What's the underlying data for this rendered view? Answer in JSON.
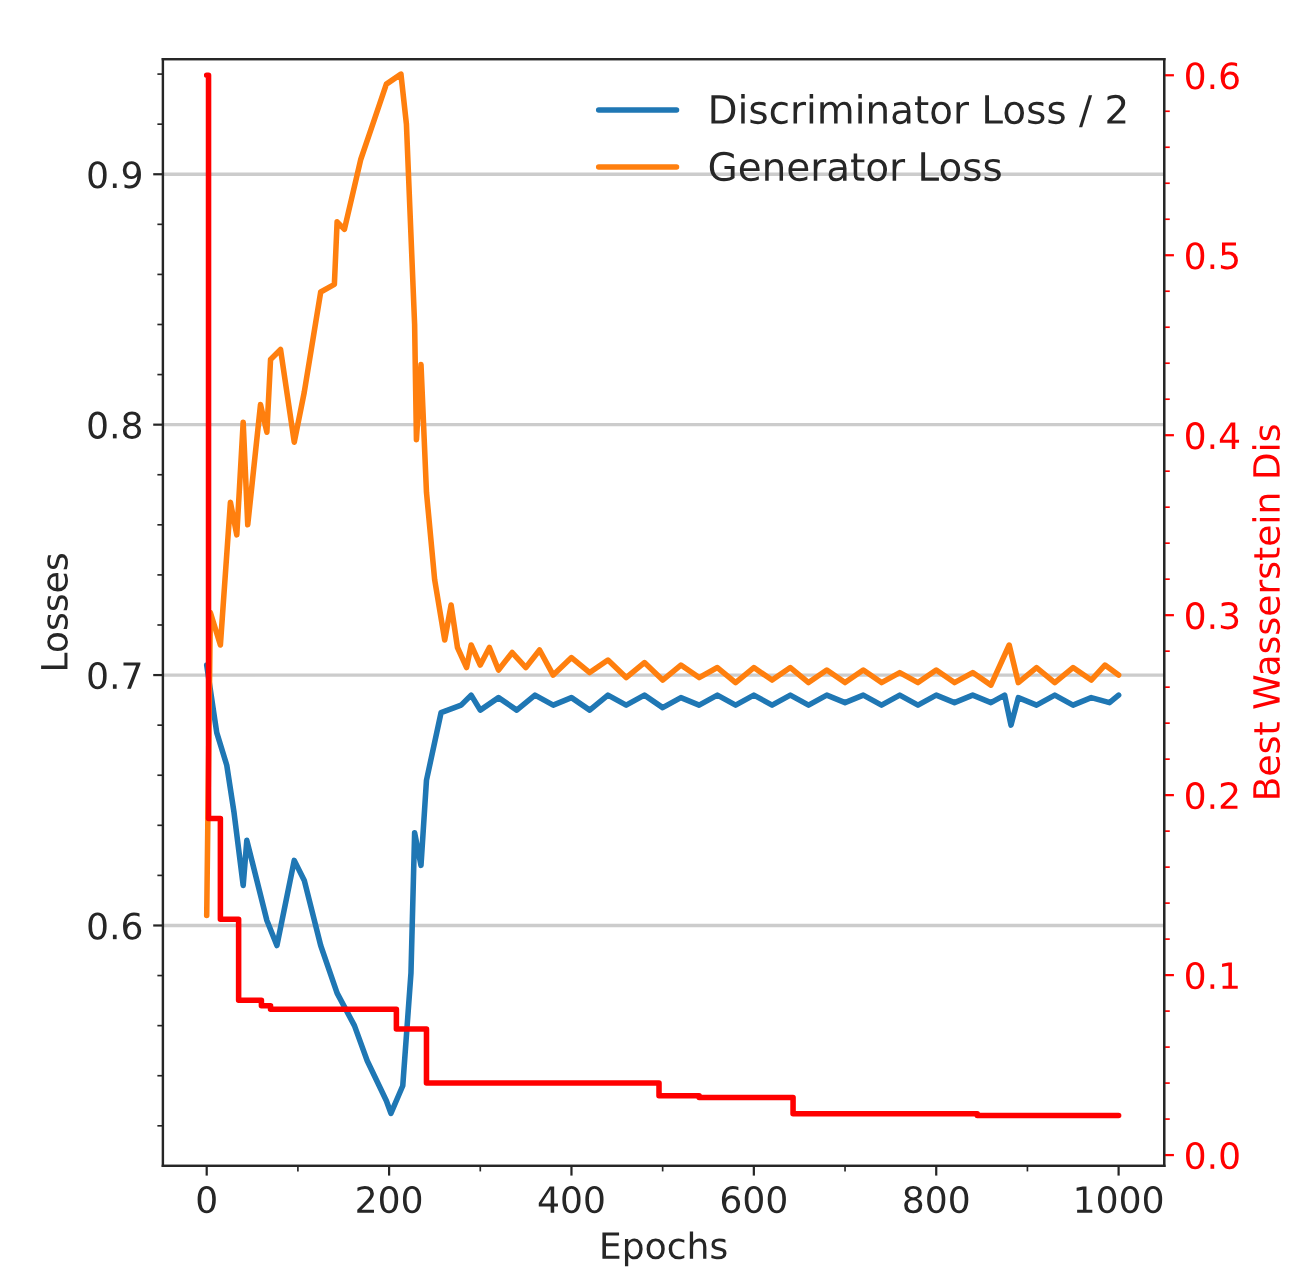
{
  "chart_data": {
    "type": "line",
    "xlabel": "Epochs",
    "ylabel": "Losses",
    "y2label": "Best Wasserstein Dis",
    "xlim": [
      -48,
      1050
    ],
    "xticks": [
      0,
      200,
      400,
      600,
      800,
      1000
    ],
    "ylim": [
      0.504,
      0.946
    ],
    "yticks": [
      0.6,
      0.7,
      0.8,
      0.9
    ],
    "y2lim": [
      -0.006,
      0.609
    ],
    "y2ticks": [
      {
        "value": 0,
        "label": "0.0"
      },
      0.1,
      0.2,
      0.3,
      0.4,
      0.5,
      0.6
    ],
    "grid": "y",
    "legend": "top right",
    "line_style": "solid",
    "marker": "none",
    "series": [
      {
        "name": "Discriminator Loss / 2",
        "color": "#1f77b4",
        "x": [
          0,
          11,
          22,
          30,
          40,
          44,
          66,
          77,
          96,
          107,
          125,
          143,
          162,
          176,
          197,
          202,
          215,
          224,
          228,
          235,
          241,
          257,
          279,
          290,
          300,
          320,
          340,
          360,
          380,
          400,
          420,
          440,
          460,
          480,
          500,
          520,
          540,
          560,
          580,
          600,
          620,
          640,
          660,
          680,
          700,
          720,
          740,
          760,
          780,
          800,
          820,
          840,
          860,
          875,
          882,
          890,
          910,
          930,
          950,
          970,
          990,
          1000
        ],
        "values": [
          0.704,
          0.677,
          0.664,
          0.645,
          0.616,
          0.634,
          0.602,
          0.592,
          0.626,
          0.618,
          0.592,
          0.573,
          0.56,
          0.546,
          0.53,
          0.525,
          0.536,
          0.581,
          0.637,
          0.624,
          0.658,
          0.685,
          0.688,
          0.692,
          0.686,
          0.691,
          0.686,
          0.692,
          0.688,
          0.691,
          0.686,
          0.692,
          0.688,
          0.692,
          0.687,
          0.691,
          0.688,
          0.692,
          0.688,
          0.692,
          0.688,
          0.692,
          0.688,
          0.692,
          0.689,
          0.692,
          0.688,
          0.692,
          0.688,
          0.692,
          0.689,
          0.692,
          0.689,
          0.692,
          0.68,
          0.691,
          0.688,
          0.692,
          0.688,
          0.691,
          0.689,
          0.692
        ]
      },
      {
        "name": "Generator Loss",
        "color": "#ff7f0e",
        "x": [
          0,
          4,
          15,
          26,
          33,
          40,
          45,
          59,
          66,
          70,
          81,
          96,
          107,
          125,
          140,
          143,
          151,
          169,
          184,
          197,
          213,
          219,
          228,
          230,
          235,
          241,
          250,
          261,
          268,
          275,
          285,
          290,
          300,
          310,
          320,
          335,
          350,
          365,
          380,
          400,
          420,
          440,
          460,
          480,
          500,
          520,
          540,
          560,
          580,
          600,
          620,
          640,
          660,
          680,
          700,
          720,
          740,
          760,
          780,
          800,
          820,
          840,
          860,
          880,
          890,
          910,
          930,
          950,
          970,
          985,
          1000
        ],
        "values": [
          0.604,
          0.725,
          0.712,
          0.769,
          0.756,
          0.801,
          0.76,
          0.808,
          0.797,
          0.826,
          0.83,
          0.793,
          0.813,
          0.853,
          0.856,
          0.881,
          0.878,
          0.906,
          0.922,
          0.936,
          0.94,
          0.92,
          0.84,
          0.794,
          0.824,
          0.773,
          0.738,
          0.714,
          0.728,
          0.711,
          0.703,
          0.712,
          0.704,
          0.711,
          0.702,
          0.709,
          0.703,
          0.71,
          0.7,
          0.707,
          0.701,
          0.706,
          0.699,
          0.705,
          0.698,
          0.704,
          0.699,
          0.703,
          0.697,
          0.703,
          0.698,
          0.703,
          0.697,
          0.702,
          0.697,
          0.702,
          0.697,
          0.701,
          0.697,
          0.702,
          0.697,
          0.701,
          0.696,
          0.712,
          0.697,
          0.703,
          0.697,
          0.703,
          0.698,
          0.704,
          0.7
        ]
      },
      {
        "type": "step",
        "axis": "y2",
        "color": "#ff0000",
        "x": [
          0,
          2,
          15,
          35,
          60,
          70,
          208,
          241,
          496,
          540,
          643,
          845,
          1000
        ],
        "values": [
          0.6,
          0.187,
          0.131,
          0.086,
          0.083,
          0.081,
          0.07,
          0.04,
          0.033,
          0.032,
          0.023,
          0.022,
          0.022
        ]
      }
    ]
  }
}
